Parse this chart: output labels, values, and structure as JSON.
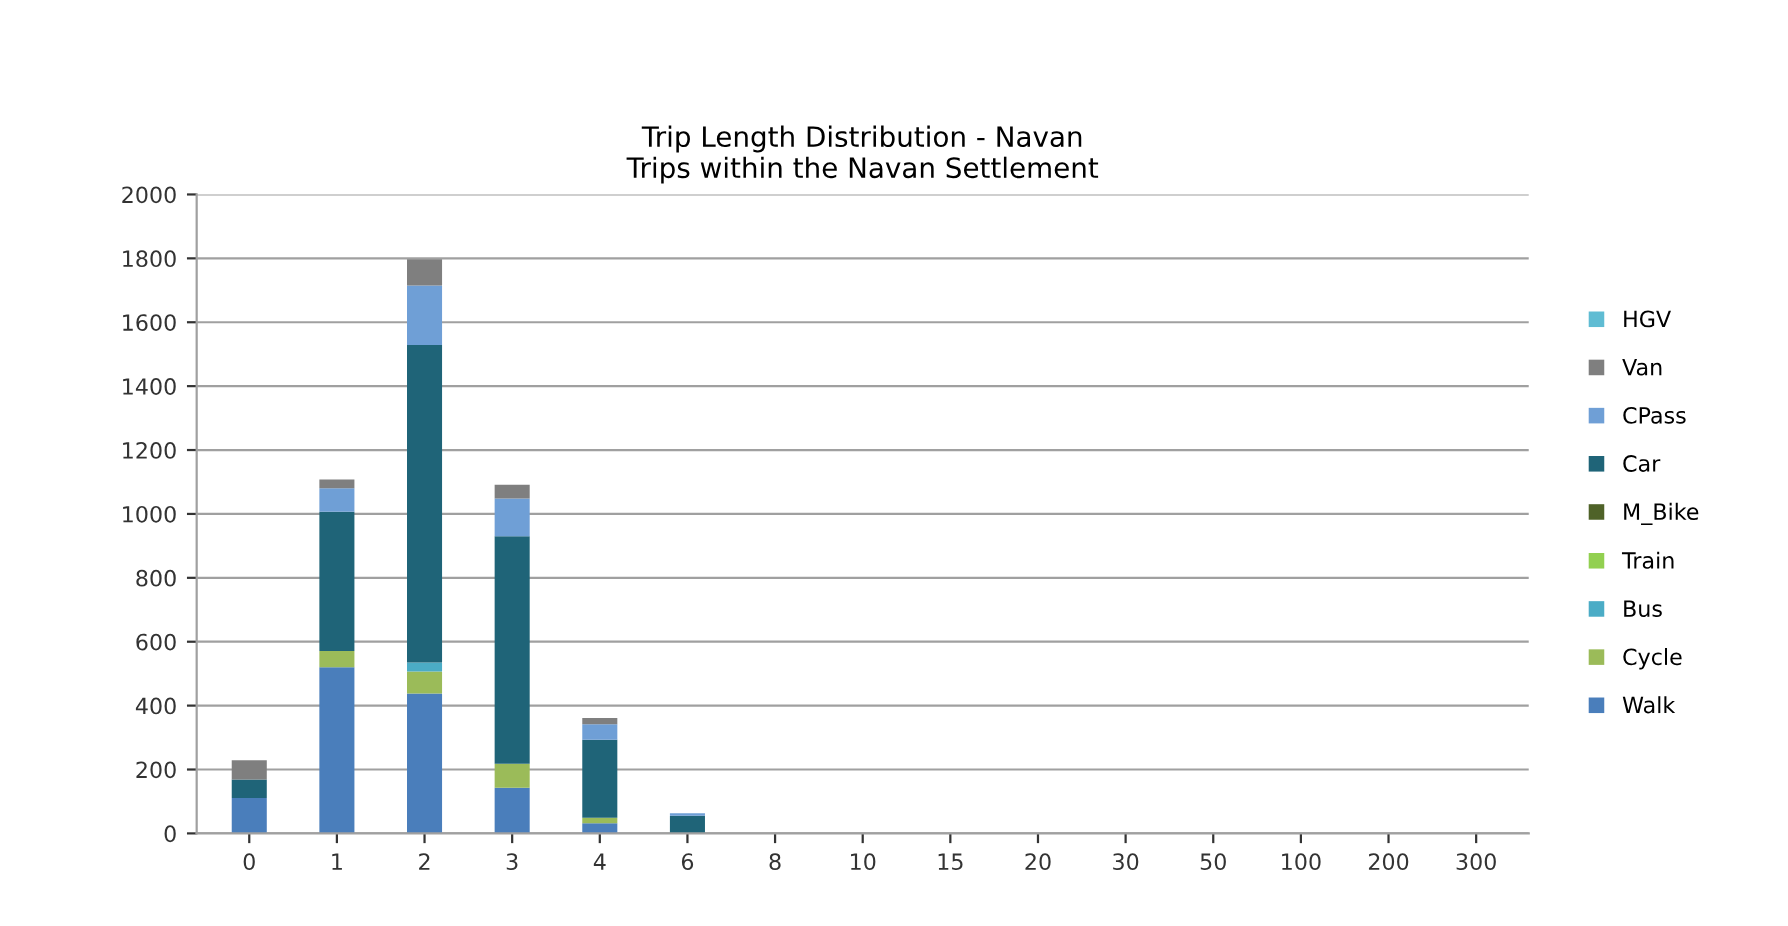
{
  "chart_data": {
    "type": "bar",
    "stacked": true,
    "title": "Trip Length Distribution - Navan\nTrips within the Navan Settlement",
    "categories": [
      "0",
      "1",
      "2",
      "3",
      "4",
      "6",
      "8",
      "10",
      "15",
      "20",
      "30",
      "50",
      "100",
      "200",
      "300"
    ],
    "series": [
      {
        "name": "Walk",
        "color": "#4a7ebb",
        "values": [
          111,
          520,
          438,
          143,
          32,
          null,
          0,
          0,
          0,
          0,
          0,
          0,
          0,
          0,
          0
        ]
      },
      {
        "name": "Cycle",
        "color": "#9bbb59",
        "values": [
          0,
          51,
          69,
          75,
          17,
          0,
          0,
          0,
          0,
          0,
          0,
          0,
          0,
          0,
          0
        ]
      },
      {
        "name": "Bus",
        "color": "#4bacc6",
        "values": [
          0,
          0,
          28,
          0,
          0,
          0,
          0,
          0,
          0,
          0,
          0,
          0,
          0,
          0,
          0
        ]
      },
      {
        "name": "Train",
        "color": "#92d050",
        "values": [
          0,
          0,
          0,
          0,
          0,
          0,
          0,
          0,
          0,
          0,
          0,
          0,
          0,
          0,
          0
        ]
      },
      {
        "name": "M_Bike",
        "color": "#4f6228",
        "values": [
          0,
          0,
          0,
          0,
          0,
          0,
          0,
          0,
          0,
          0,
          0,
          0,
          0,
          0,
          0
        ]
      },
      {
        "name": "Car",
        "color": "#1f6478",
        "values": [
          58,
          436,
          994,
          712,
          244,
          55,
          0,
          0,
          0,
          0,
          0,
          0,
          0,
          0,
          0
        ]
      },
      {
        "name": "CPass",
        "color": "#6f9fd6",
        "values": [
          0,
          73,
          186,
          118,
          49,
          8,
          0,
          0,
          0,
          0,
          0,
          0,
          0,
          0,
          0
        ]
      },
      {
        "name": "Van",
        "color": "#7f7f7f",
        "values": [
          60,
          28,
          82,
          43,
          19,
          0,
          0,
          0,
          0,
          0,
          0,
          0,
          0,
          0,
          0
        ]
      },
      {
        "name": "HGV",
        "color": "#5fbcd3",
        "values": [
          0,
          0,
          0,
          0,
          0,
          0,
          0,
          0,
          0,
          0,
          0,
          0,
          0,
          0,
          0
        ]
      }
    ],
    "ylim": [
      0,
      2000
    ],
    "yticks": [
      0,
      200,
      400,
      600,
      800,
      1000,
      1200,
      1400,
      1600,
      1800,
      2000
    ],
    "grid": "y",
    "legend": "right"
  }
}
